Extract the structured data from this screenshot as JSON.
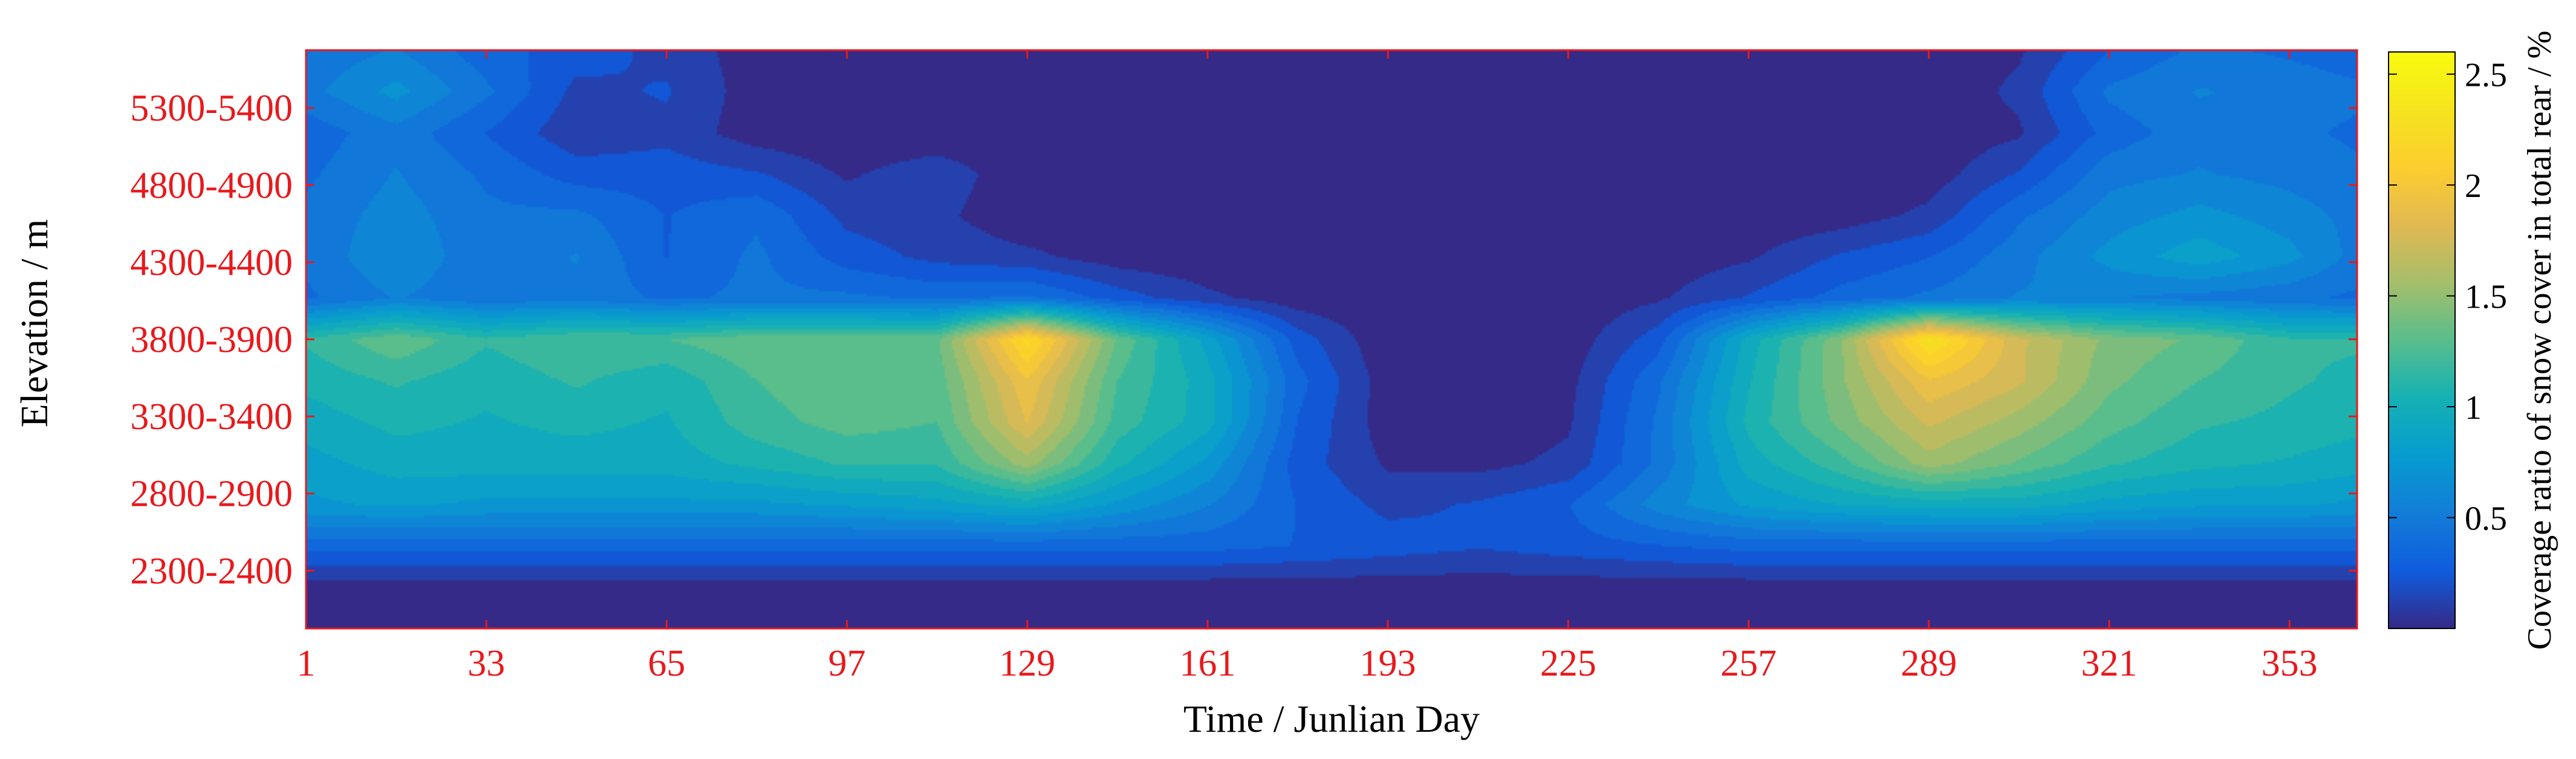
{
  "chart_data": {
    "type": "heatmap",
    "subtype": "filled-contour",
    "xlabel": "Time / Junlian Day",
    "ylabel": "Elevation / m",
    "colorbar_label": "Coverage ratio of  snow cover in total rear / %",
    "xlim": [
      1,
      365
    ],
    "x_ticks": [
      "1",
      "33",
      "65",
      "97",
      "129",
      "161",
      "193",
      "225",
      "257",
      "289",
      "321",
      "353"
    ],
    "x_tick_values": [
      1,
      33,
      65,
      97,
      129,
      161,
      193,
      225,
      257,
      289,
      321,
      353
    ],
    "y_ticks": [
      "2300-2400",
      "2800-2900",
      "3300-3400",
      "3800-3900",
      "4300-4400",
      "4800-4900",
      "5300-5400"
    ],
    "colorbar_ticks": [
      "0.5",
      "1",
      "1.5",
      "2",
      "2.5"
    ],
    "colorbar_tick_values": [
      0.5,
      1,
      1.5,
      2,
      2.5
    ],
    "clim": [
      0,
      2.6
    ],
    "colormap": "parula",
    "tick_label_color": "#e8191c",
    "axis_color": "#e8191c",
    "grid": false,
    "colorbar_position": "right",
    "x": [
      1,
      17,
      33,
      49,
      65,
      81,
      97,
      113,
      129,
      145,
      161,
      177,
      193,
      209,
      225,
      241,
      257,
      273,
      289,
      305,
      321,
      337,
      353,
      365
    ],
    "y_rows_bottom_to_top": [
      "2000-2100",
      "2300-2400",
      "2550-2650",
      "2800-2900",
      "3050-3150",
      "3300-3400",
      "3550-3650",
      "3800-3900",
      "4050-4150",
      "4300-4400",
      "4550-4650",
      "4800-4900",
      "5050-5150",
      "5300-5400",
      "5550-5650"
    ],
    "z": [
      [
        0.02,
        0.02,
        0.02,
        0.02,
        0.02,
        0.02,
        0.02,
        0.02,
        0.02,
        0.02,
        0.02,
        0.02,
        0.02,
        0.02,
        0.02,
        0.02,
        0.02,
        0.02,
        0.02,
        0.02,
        0.02,
        0.02,
        0.02,
        0.02
      ],
      [
        0.05,
        0.05,
        0.05,
        0.05,
        0.05,
        0.05,
        0.05,
        0.05,
        0.05,
        0.05,
        0.05,
        0.05,
        0.05,
        0.05,
        0.05,
        0.05,
        0.05,
        0.05,
        0.05,
        0.05,
        0.05,
        0.05,
        0.05,
        0.05
      ],
      [
        0.4,
        0.4,
        0.4,
        0.4,
        0.4,
        0.4,
        0.4,
        0.4,
        0.4,
        0.4,
        0.4,
        0.35,
        0.3,
        0.25,
        0.3,
        0.35,
        0.4,
        0.4,
        0.4,
        0.4,
        0.4,
        0.4,
        0.4,
        0.4
      ],
      [
        0.8,
        0.85,
        0.8,
        0.8,
        0.8,
        0.8,
        0.85,
        0.9,
        1.0,
        0.8,
        0.6,
        0.35,
        0.2,
        0.25,
        0.35,
        0.65,
        0.85,
        0.95,
        1.0,
        1.0,
        0.9,
        0.85,
        0.85,
        0.8
      ],
      [
        0.9,
        1.0,
        1.0,
        1.0,
        1.0,
        1.1,
        1.2,
        1.2,
        1.6,
        1.1,
        0.8,
        0.3,
        0.1,
        0.08,
        0.15,
        0.5,
        1.0,
        1.25,
        1.6,
        1.4,
        1.2,
        1.1,
        1.05,
        1.0
      ],
      [
        1.0,
        1.1,
        1.05,
        1.1,
        1.05,
        1.25,
        1.35,
        1.3,
        1.9,
        1.25,
        1.0,
        0.35,
        0.05,
        0.03,
        0.1,
        0.5,
        1.1,
        1.45,
        1.8,
        1.6,
        1.35,
        1.2,
        1.15,
        1.1
      ],
      [
        1.1,
        1.2,
        1.1,
        1.2,
        1.1,
        1.3,
        1.4,
        1.35,
        2.0,
        1.3,
        1.0,
        0.4,
        0.05,
        0.02,
        0.08,
        0.45,
        1.05,
        1.5,
        2.0,
        1.8,
        1.45,
        1.3,
        1.2,
        1.15
      ],
      [
        1.2,
        1.4,
        1.2,
        1.3,
        1.3,
        1.4,
        1.4,
        1.4,
        2.3,
        1.4,
        0.9,
        0.3,
        0.02,
        0.02,
        0.04,
        0.3,
        1.0,
        1.5,
        2.4,
        1.8,
        1.5,
        1.4,
        1.2,
        1.2
      ],
      [
        0.45,
        0.6,
        0.5,
        0.55,
        0.45,
        0.5,
        0.5,
        0.45,
        0.5,
        0.3,
        0.15,
        0.04,
        0.02,
        0.02,
        0.02,
        0.1,
        0.25,
        0.4,
        0.5,
        0.6,
        0.6,
        0.55,
        0.5,
        0.45
      ],
      [
        0.5,
        0.7,
        0.5,
        0.6,
        0.35,
        0.5,
        0.3,
        0.2,
        0.15,
        0.05,
        0.02,
        0.02,
        0.02,
        0.02,
        0.02,
        0.04,
        0.1,
        0.25,
        0.35,
        0.55,
        0.75,
        0.9,
        0.75,
        0.55
      ],
      [
        0.5,
        0.65,
        0.5,
        0.5,
        0.35,
        0.45,
        0.2,
        0.15,
        0.02,
        0.02,
        0.02,
        0.02,
        0.02,
        0.02,
        0.02,
        0.02,
        0.02,
        0.05,
        0.15,
        0.45,
        0.65,
        0.75,
        0.65,
        0.55
      ],
      [
        0.45,
        0.6,
        0.45,
        0.3,
        0.3,
        0.25,
        0.1,
        0.2,
        0.02,
        0.02,
        0.02,
        0.02,
        0.02,
        0.02,
        0.02,
        0.02,
        0.02,
        0.02,
        0.05,
        0.25,
        0.55,
        0.6,
        0.55,
        0.5
      ],
      [
        0.4,
        0.55,
        0.35,
        0.15,
        0.2,
        0.05,
        0.02,
        0.02,
        0.02,
        0.02,
        0.02,
        0.02,
        0.02,
        0.02,
        0.02,
        0.02,
        0.02,
        0.02,
        0.02,
        0.1,
        0.4,
        0.55,
        0.5,
        0.45
      ],
      [
        0.55,
        0.75,
        0.5,
        0.2,
        0.25,
        0.05,
        0.02,
        0.02,
        0.02,
        0.02,
        0.02,
        0.02,
        0.02,
        0.02,
        0.02,
        0.02,
        0.02,
        0.02,
        0.02,
        0.15,
        0.5,
        0.6,
        0.55,
        0.5
      ],
      [
        0.5,
        0.6,
        0.4,
        0.3,
        0.2,
        0.05,
        0.02,
        0.02,
        0.02,
        0.02,
        0.02,
        0.02,
        0.02,
        0.02,
        0.02,
        0.02,
        0.02,
        0.02,
        0.02,
        0.1,
        0.35,
        0.5,
        0.45,
        0.4
      ]
    ]
  }
}
